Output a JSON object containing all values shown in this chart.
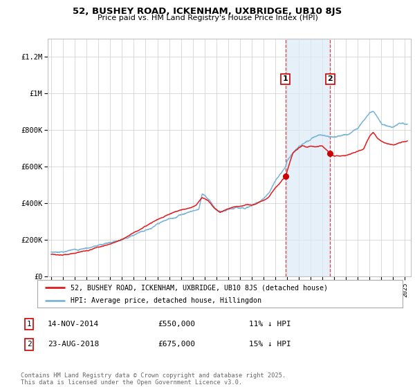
{
  "title": "52, BUSHEY ROAD, ICKENHAM, UXBRIDGE, UB10 8JS",
  "subtitle": "Price paid vs. HM Land Registry's House Price Index (HPI)",
  "ylabel_ticks": [
    "£0",
    "£200K",
    "£400K",
    "£600K",
    "£800K",
    "£1M",
    "£1.2M"
  ],
  "ytick_values": [
    0,
    200000,
    400000,
    600000,
    800000,
    1000000,
    1200000
  ],
  "ylim": [
    0,
    1300000
  ],
  "xlim_start": 1994.7,
  "xlim_end": 2025.5,
  "xtick_years": [
    1995,
    1996,
    1997,
    1998,
    1999,
    2000,
    2001,
    2002,
    2003,
    2004,
    2005,
    2006,
    2007,
    2008,
    2009,
    2010,
    2011,
    2012,
    2013,
    2014,
    2015,
    2016,
    2017,
    2018,
    2019,
    2020,
    2021,
    2022,
    2023,
    2024,
    2025
  ],
  "hpi_color": "#7ab4d8",
  "price_color": "#e31a1c",
  "marker_color": "#cc0000",
  "vline_color": "#e31a1c",
  "shade_color": "#daeaf7",
  "purchase1_x": 2014.87,
  "purchase1_y": 550000,
  "purchase2_x": 2018.65,
  "purchase2_y": 675000,
  "legend_label1": "52, BUSHEY ROAD, ICKENHAM, UXBRIDGE, UB10 8JS (detached house)",
  "legend_label2": "HPI: Average price, detached house, Hillingdon",
  "annotation1_label": "1",
  "annotation2_label": "2",
  "table_row1": [
    "1",
    "14-NOV-2014",
    "£550,000",
    "11% ↓ HPI"
  ],
  "table_row2": [
    "2",
    "23-AUG-2018",
    "£675,000",
    "15% ↓ HPI"
  ],
  "footnote": "Contains HM Land Registry data © Crown copyright and database right 2025.\nThis data is licensed under the Open Government Licence v3.0.",
  "background_color": "#ffffff",
  "grid_color": "#cccccc",
  "hpi_anchors": [
    [
      1995.0,
      135000
    ],
    [
      1996.0,
      140000
    ],
    [
      1997.0,
      148000
    ],
    [
      1998.0,
      162000
    ],
    [
      1999.0,
      178000
    ],
    [
      2000.0,
      195000
    ],
    [
      2001.0,
      218000
    ],
    [
      2002.0,
      252000
    ],
    [
      2003.0,
      285000
    ],
    [
      2004.0,
      315000
    ],
    [
      2005.0,
      340000
    ],
    [
      2005.5,
      352000
    ],
    [
      2006.0,
      370000
    ],
    [
      2007.0,
      395000
    ],
    [
      2007.5,
      405000
    ],
    [
      2007.8,
      490000
    ],
    [
      2008.0,
      480000
    ],
    [
      2008.5,
      450000
    ],
    [
      2009.0,
      400000
    ],
    [
      2009.5,
      385000
    ],
    [
      2010.0,
      390000
    ],
    [
      2010.5,
      395000
    ],
    [
      2011.0,
      400000
    ],
    [
      2011.5,
      405000
    ],
    [
      2012.0,
      415000
    ],
    [
      2012.5,
      430000
    ],
    [
      2013.0,
      455000
    ],
    [
      2013.5,
      490000
    ],
    [
      2014.0,
      545000
    ],
    [
      2014.87,
      625000
    ],
    [
      2015.0,
      660000
    ],
    [
      2015.5,
      700000
    ],
    [
      2016.0,
      745000
    ],
    [
      2016.5,
      760000
    ],
    [
      2017.0,
      775000
    ],
    [
      2017.5,
      790000
    ],
    [
      2018.0,
      800000
    ],
    [
      2018.65,
      795000
    ],
    [
      2019.0,
      790000
    ],
    [
      2019.5,
      795000
    ],
    [
      2020.0,
      805000
    ],
    [
      2020.5,
      820000
    ],
    [
      2021.0,
      845000
    ],
    [
      2021.5,
      895000
    ],
    [
      2022.0,
      940000
    ],
    [
      2022.3,
      950000
    ],
    [
      2022.7,
      920000
    ],
    [
      2023.0,
      885000
    ],
    [
      2023.5,
      870000
    ],
    [
      2024.0,
      870000
    ],
    [
      2024.5,
      895000
    ],
    [
      2025.0,
      890000
    ]
  ],
  "price_anchors": [
    [
      1995.0,
      122000
    ],
    [
      1996.0,
      124000
    ],
    [
      1997.0,
      130000
    ],
    [
      1998.0,
      145000
    ],
    [
      1999.0,
      162000
    ],
    [
      2000.0,
      178000
    ],
    [
      2001.0,
      200000
    ],
    [
      2002.0,
      232000
    ],
    [
      2003.0,
      265000
    ],
    [
      2004.0,
      295000
    ],
    [
      2005.0,
      325000
    ],
    [
      2005.5,
      340000
    ],
    [
      2006.0,
      352000
    ],
    [
      2007.0,
      368000
    ],
    [
      2007.3,
      380000
    ],
    [
      2007.8,
      420000
    ],
    [
      2008.3,
      405000
    ],
    [
      2008.8,
      368000
    ],
    [
      2009.3,
      345000
    ],
    [
      2009.8,
      360000
    ],
    [
      2010.3,
      372000
    ],
    [
      2011.0,
      380000
    ],
    [
      2011.5,
      388000
    ],
    [
      2012.0,
      390000
    ],
    [
      2012.5,
      400000
    ],
    [
      2013.0,
      415000
    ],
    [
      2013.5,
      440000
    ],
    [
      2014.0,
      490000
    ],
    [
      2014.87,
      550000
    ],
    [
      2015.2,
      620000
    ],
    [
      2015.5,
      680000
    ],
    [
      2016.0,
      710000
    ],
    [
      2016.3,
      720000
    ],
    [
      2016.7,
      715000
    ],
    [
      2017.0,
      720000
    ],
    [
      2017.5,
      715000
    ],
    [
      2018.0,
      715000
    ],
    [
      2018.65,
      675000
    ],
    [
      2019.0,
      660000
    ],
    [
      2019.5,
      660000
    ],
    [
      2020.0,
      665000
    ],
    [
      2020.5,
      675000
    ],
    [
      2021.0,
      685000
    ],
    [
      2021.5,
      700000
    ],
    [
      2022.0,
      770000
    ],
    [
      2022.3,
      790000
    ],
    [
      2022.7,
      760000
    ],
    [
      2023.0,
      745000
    ],
    [
      2023.5,
      730000
    ],
    [
      2024.0,
      725000
    ],
    [
      2024.5,
      735000
    ],
    [
      2025.0,
      740000
    ]
  ]
}
